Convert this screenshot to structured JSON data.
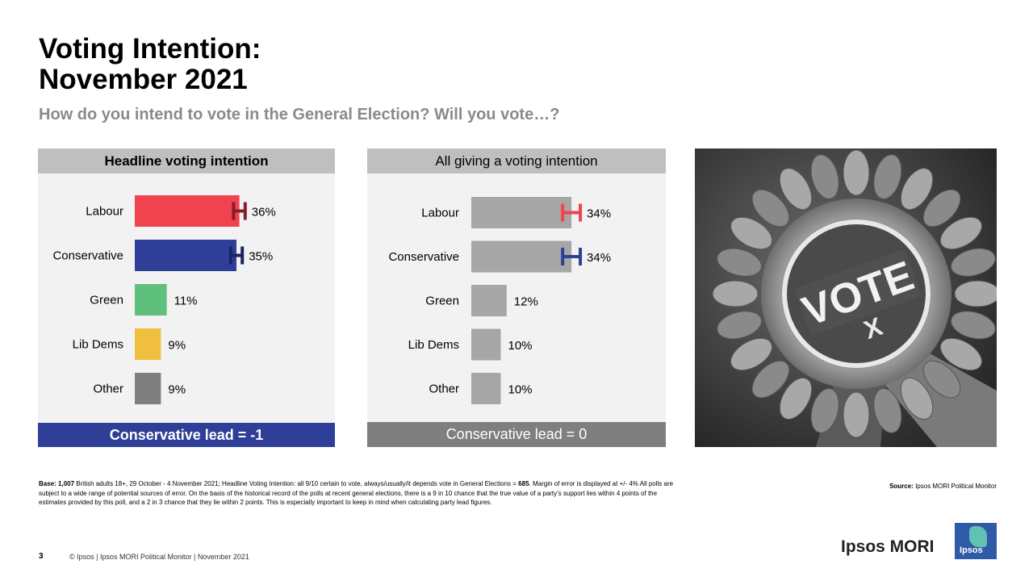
{
  "title_line1": "Voting Intention:",
  "title_line2": "November 2021",
  "subtitle": "How do you intend to vote in the General Election? Will you vote…?",
  "left_panel": {
    "header": "Headline voting intention",
    "footer": "Conservative lead = -1"
  },
  "mid_panel": {
    "header": "All giving a voting intention",
    "footer": "Conservative lead = 0"
  },
  "photo": {
    "badge_text": "VOTE",
    "mark": "X"
  },
  "footnote": {
    "base_label": "Base:",
    "base_n": "1,007",
    "text1": " British adults 18+, 29 October - 4 November 2021; Headline Voting Intention:  all  9/10 certain to vote, always/usually/it depends vote in General Elections = ",
    "headline_n": "685",
    "text2": ". Margin of error is displayed at +/- 4% All polls are subject to a wide range of potential sources of error. On the basis of the historical record of the polls at recent general elections, there is a 9 in 10 chance that the true value of a party’s support lies within 4 points of the estimates provided by this poll, and a 2 in 3 chance that they lie within 2 points. This is especially important to keep in mind when calculating party lead figures."
  },
  "source_label": "Source:",
  "source_text": " Ipsos MORI Political Monitor",
  "page_number": "3",
  "copyright": "© Ipsos | Ipsos MORI Political Monitor | November 2021",
  "brand": "Ipsos MORI",
  "logo_text": "Ipsos",
  "colors": {
    "labour": "#f0434f",
    "conservative": "#2f3f97",
    "green": "#5fbf7d",
    "libdem": "#f0bf40",
    "other": "#7f7f7f",
    "grey_bar": "#a6a6a6",
    "labour_err": "#8b1a2a",
    "con_err": "#1b2460"
  },
  "chart_data": [
    {
      "type": "bar",
      "title": "Headline voting intention",
      "categories": [
        "Labour",
        "Conservative",
        "Green",
        "Lib Dems",
        "Other"
      ],
      "values": [
        36,
        35,
        11,
        9,
        9
      ],
      "value_labels": [
        "36%",
        "35%",
        "11%",
        "9%",
        "9%"
      ],
      "bar_colors": [
        "#f0434f",
        "#2f3f97",
        "#5fbf7d",
        "#f0bf40",
        "#7f7f7f"
      ],
      "error_bars": [
        {
          "category": "Labour",
          "value": 36,
          "lower": 34,
          "upper": 38,
          "color": "#8b1a2a"
        },
        {
          "category": "Conservative",
          "value": 35,
          "lower": 33,
          "upper": 37,
          "color": "#1b2460"
        }
      ],
      "orientation": "horizontal",
      "xlim": [
        0,
        100
      ]
    },
    {
      "type": "bar",
      "title": "All giving a voting intention",
      "categories": [
        "Labour",
        "Conservative",
        "Green",
        "Lib Dems",
        "Other"
      ],
      "values": [
        34,
        34,
        12,
        10,
        10
      ],
      "value_labels": [
        "34%",
        "34%",
        "12%",
        "10%",
        "10%"
      ],
      "bar_colors": [
        "#a6a6a6",
        "#a6a6a6",
        "#a6a6a6",
        "#a6a6a6",
        "#a6a6a6"
      ],
      "error_bars": [
        {
          "category": "Labour",
          "value": 34,
          "lower": 31,
          "upper": 37,
          "color": "#f0434f"
        },
        {
          "category": "Conservative",
          "value": 34,
          "lower": 31,
          "upper": 37,
          "color": "#2f3f97"
        }
      ],
      "orientation": "horizontal",
      "xlim": [
        0,
        100
      ]
    }
  ]
}
